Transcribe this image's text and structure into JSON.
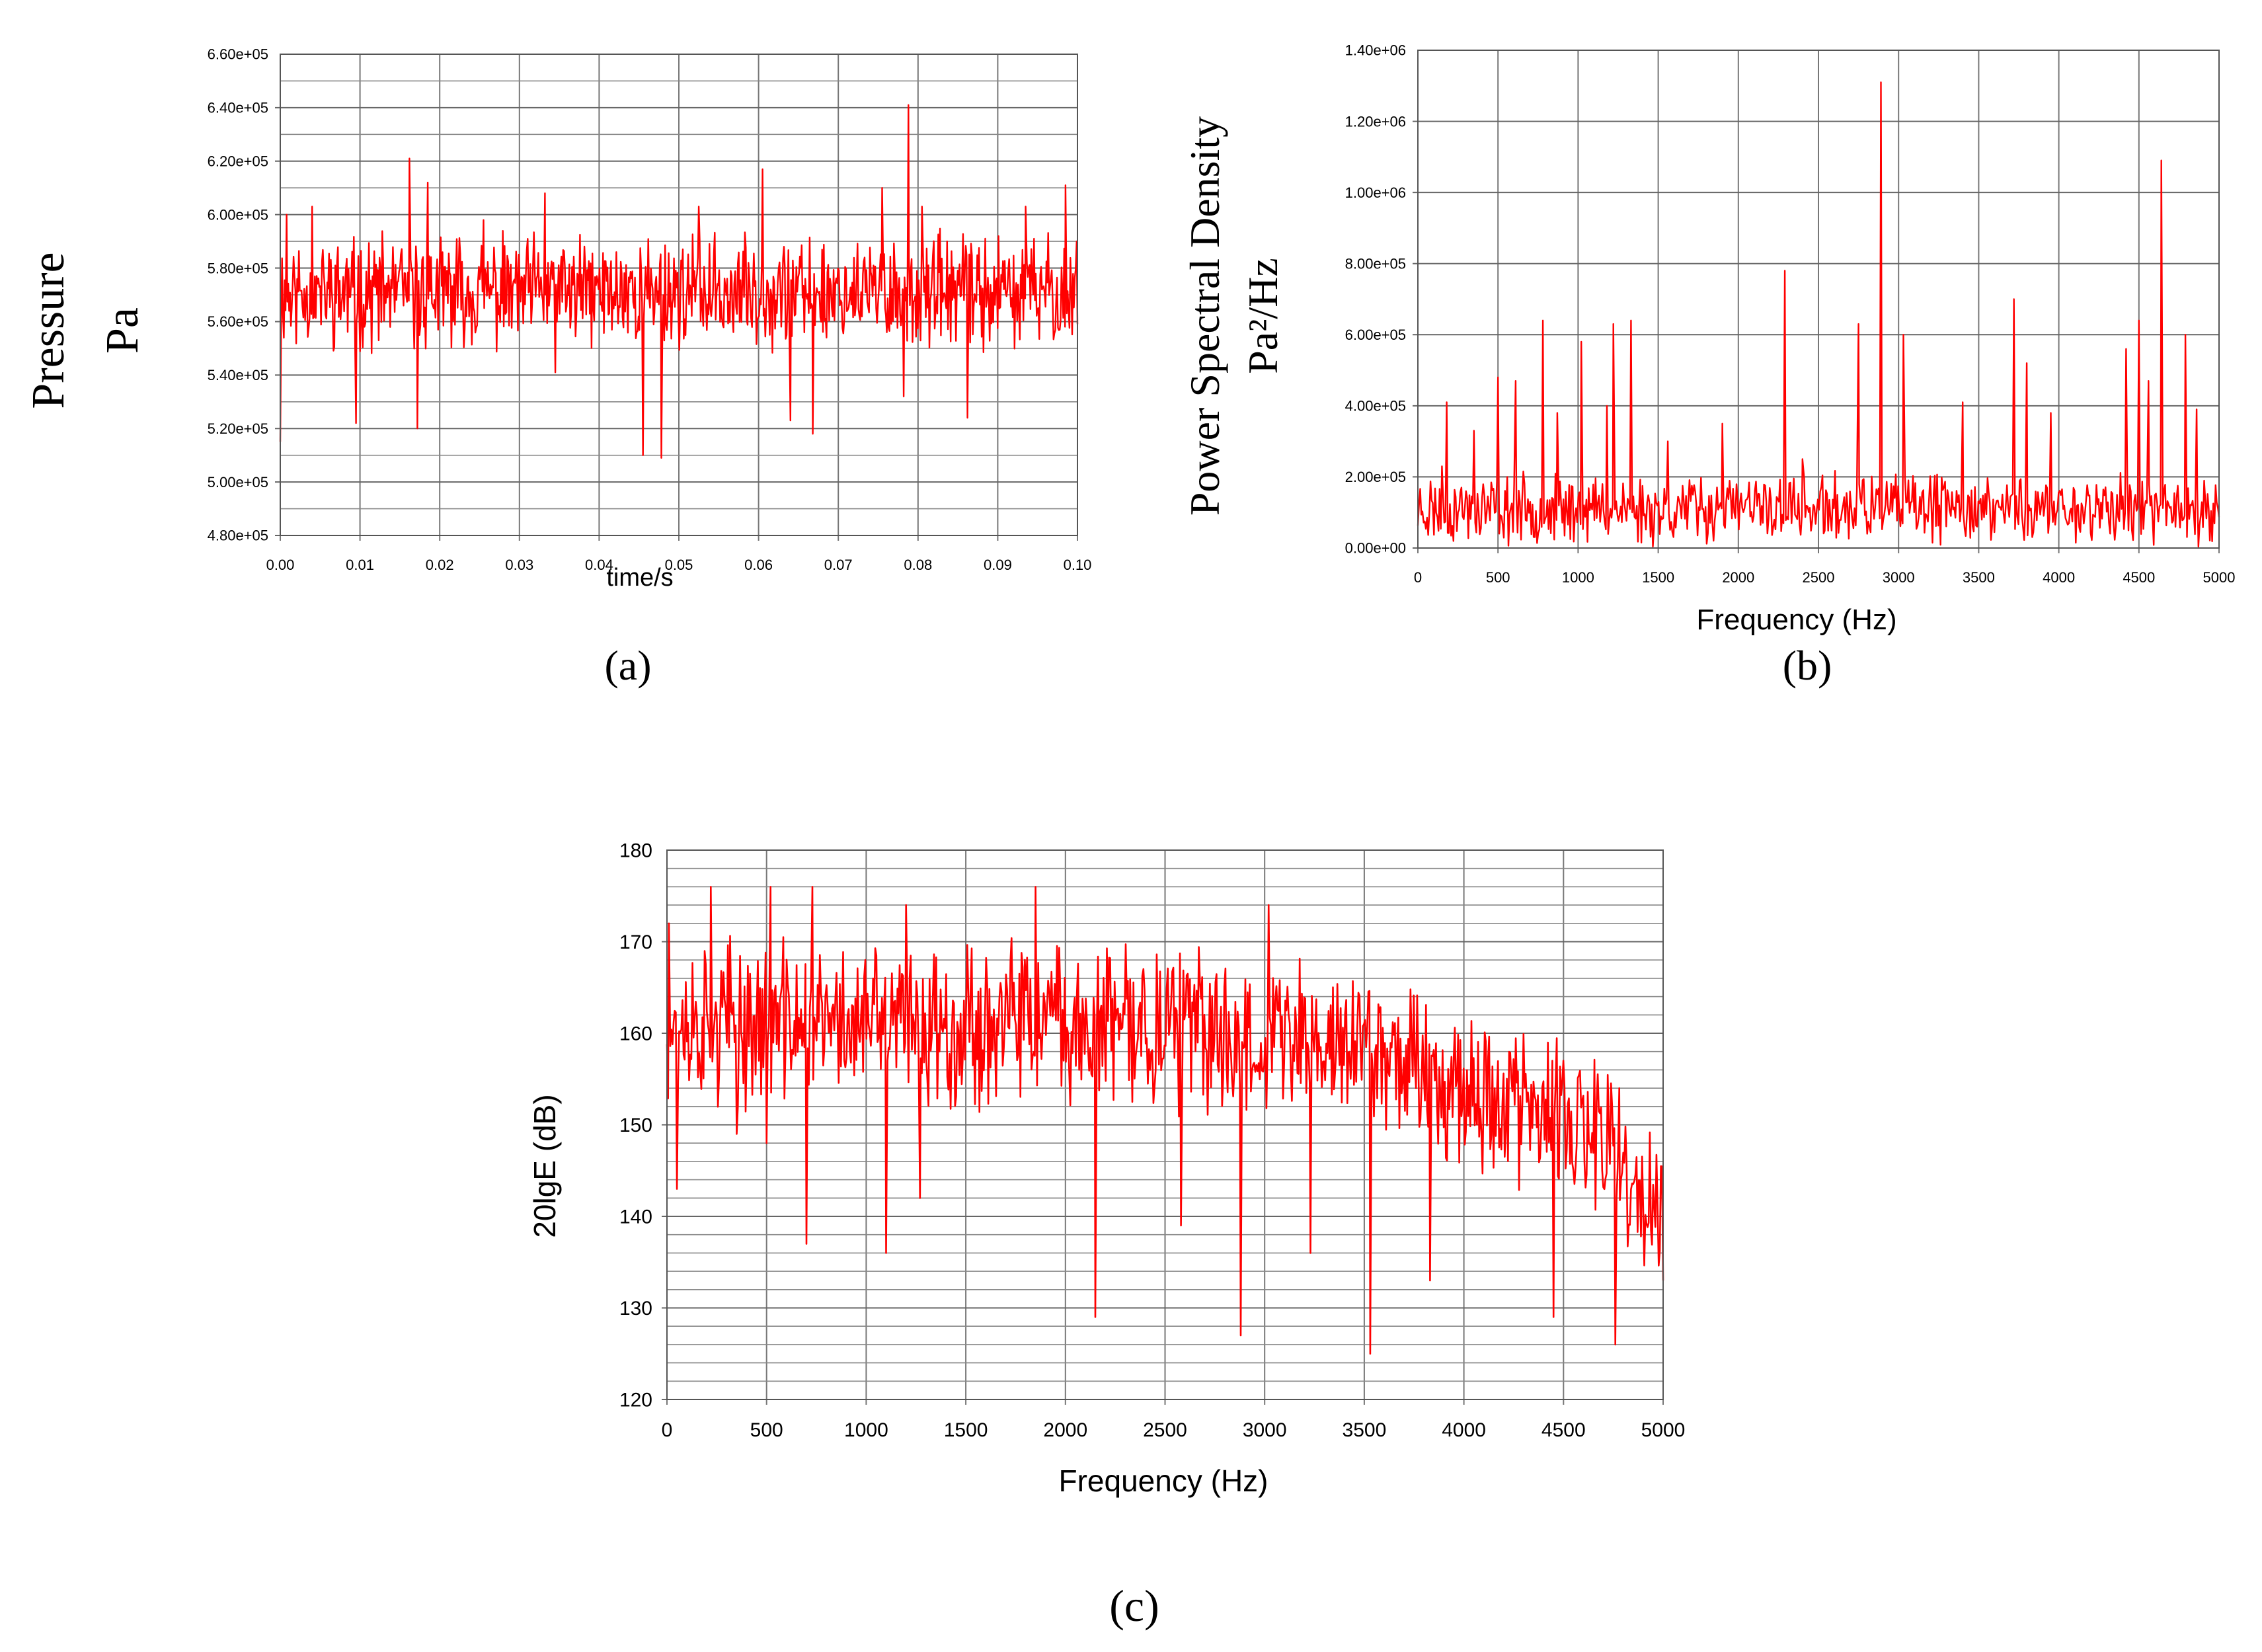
{
  "chart_data": [
    {
      "panel": "a",
      "type": "line",
      "caption": "(a)",
      "xlabel": "time/s",
      "ylabel_lines": [
        "Pressure",
        "Pa"
      ],
      "xlim": [
        0,
        0.1
      ],
      "ylim": [
        480000,
        660000
      ],
      "x_ticks": [
        0,
        0.01,
        0.02,
        0.03,
        0.04,
        0.05,
        0.06,
        0.07,
        0.08,
        0.09,
        0.1
      ],
      "x_tick_labels": [
        "0.00",
        "0.01",
        "0.02",
        "0.03",
        "0.04",
        "0.05",
        "0.06",
        "0.07",
        "0.08",
        "0.09",
        "0.10"
      ],
      "y_ticks": [
        480000,
        500000,
        520000,
        540000,
        560000,
        580000,
        600000,
        620000,
        640000,
        660000
      ],
      "y_tick_labels": [
        "4.80e+05",
        "5.00e+05",
        "5.20e+05",
        "5.40e+05",
        "5.60e+05",
        "5.80e+05",
        "6.00e+05",
        "6.20e+05",
        "6.40e+05",
        "6.60e+05"
      ],
      "grid": true,
      "line_color": "#ff0000",
      "series": [
        {
          "name": "pressure",
          "generated": true,
          "n_points": 900,
          "baseline": 571000,
          "noise": 15000,
          "floor": 505000,
          "ceiling": 645000,
          "seed": 11,
          "peaks": [
            [
              0.0,
              515000
            ],
            [
              0.0008,
              600000
            ],
            [
              0.004,
              603000
            ],
            [
              0.0095,
              522000
            ],
            [
              0.0162,
              621000
            ],
            [
              0.0172,
              520000
            ],
            [
              0.0185,
              612000
            ],
            [
              0.0255,
              598000
            ],
            [
              0.0332,
              608000
            ],
            [
              0.0345,
              541000
            ],
            [
              0.0455,
              510000
            ],
            [
              0.0478,
              509000
            ],
            [
              0.0525,
              603000
            ],
            [
              0.0605,
              617000
            ],
            [
              0.064,
              523000
            ],
            [
              0.0668,
              518000
            ],
            [
              0.0755,
              610000
            ],
            [
              0.0782,
              532000
            ],
            [
              0.0788,
              641000
            ],
            [
              0.0805,
              603000
            ],
            [
              0.0862,
              524000
            ],
            [
              0.0935,
              603000
            ],
            [
              0.0985,
              611000
            ],
            [
              0.0999,
              590000
            ]
          ]
        }
      ]
    },
    {
      "panel": "b",
      "type": "line",
      "caption": "(b)",
      "xlabel": "Frequency (Hz)",
      "ylabel_lines": [
        "Power Spectral Density",
        "Pa²/Hz"
      ],
      "xlim": [
        0,
        5000
      ],
      "ylim": [
        0,
        1400000
      ],
      "x_ticks": [
        0,
        500,
        1000,
        1500,
        2000,
        2500,
        3000,
        3500,
        4000,
        4500,
        5000
      ],
      "x_tick_labels": [
        "0",
        "500",
        "1000",
        "1500",
        "2000",
        "2500",
        "3000",
        "3500",
        "4000",
        "4500",
        "5000"
      ],
      "y_ticks": [
        0,
        200000,
        400000,
        600000,
        800000,
        1000000,
        1200000,
        1400000
      ],
      "y_tick_labels": [
        "0.00e+00",
        "2.00e+05",
        "4.00e+05",
        "6.00e+05",
        "8.00e+05",
        "1.00e+06",
        "1.20e+06",
        "1.40e+06"
      ],
      "grid": true,
      "line_color": "#ff0000",
      "series": [
        {
          "name": "psd",
          "generated": true,
          "n_points": 700,
          "baseline": 110000,
          "noise": 70000,
          "floor": 0,
          "ceiling": 1400000,
          "seed": 23,
          "peaks": [
            [
              150,
              230000
            ],
            [
              180,
              410000
            ],
            [
              350,
              330000
            ],
            [
              500,
              480000
            ],
            [
              610,
              470000
            ],
            [
              780,
              640000
            ],
            [
              870,
              380000
            ],
            [
              1020,
              580000
            ],
            [
              1180,
              400000
            ],
            [
              1220,
              630000
            ],
            [
              1330,
              640000
            ],
            [
              1560,
              300000
            ],
            [
              1900,
              350000
            ],
            [
              2290,
              780000
            ],
            [
              2400,
              250000
            ],
            [
              2750,
              630000
            ],
            [
              2890,
              1310000
            ],
            [
              3030,
              600000
            ],
            [
              3400,
              410000
            ],
            [
              3720,
              700000
            ],
            [
              3800,
              520000
            ],
            [
              3950,
              380000
            ],
            [
              4420,
              560000
            ],
            [
              4500,
              640000
            ],
            [
              4560,
              470000
            ],
            [
              4640,
              1090000
            ],
            [
              4790,
              600000
            ],
            [
              4860,
              390000
            ]
          ]
        }
      ]
    },
    {
      "panel": "c",
      "type": "line",
      "caption": "(c)",
      "xlabel": "Frequency (Hz)",
      "ylabel": "20lgE (dB)",
      "xlim": [
        0,
        5000
      ],
      "ylim": [
        120,
        180
      ],
      "x_ticks": [
        0,
        500,
        1000,
        1500,
        2000,
        2500,
        3000,
        3500,
        4000,
        4500,
        5000
      ],
      "x_tick_labels": [
        "0",
        "500",
        "1000",
        "1500",
        "2000",
        "2500",
        "3000",
        "3500",
        "4000",
        "4500",
        "5000"
      ],
      "y_ticks": [
        120,
        130,
        140,
        150,
        160,
        170,
        180
      ],
      "y_tick_labels": [
        "120",
        "130",
        "140",
        "150",
        "160",
        "170",
        "180"
      ],
      "grid": true,
      "line_color": "#ff0000",
      "series": [
        {
          "name": "20lgE",
          "generated": true,
          "n_points": 900,
          "noise": 6.5,
          "floor": 125,
          "ceiling": 177,
          "seed": 37,
          "trend": [
            [
              0,
              161
            ],
            [
              2000,
              161
            ],
            [
              3500,
              159
            ],
            [
              4200,
              153
            ],
            [
              4700,
              148
            ],
            [
              5000,
              138
            ]
          ],
          "peaks": [
            [
              10,
              172
            ],
            [
              50,
              143
            ],
            [
              220,
              176
            ],
            [
              350,
              149
            ],
            [
              500,
              148
            ],
            [
              520,
              176
            ],
            [
              700,
              137
            ],
            [
              730,
              176
            ],
            [
              1100,
              136
            ],
            [
              1200,
              174
            ],
            [
              1270,
              142
            ],
            [
              1850,
              176
            ],
            [
              2150,
              129
            ],
            [
              2580,
              139
            ],
            [
              2880,
              127
            ],
            [
              3020,
              174
            ],
            [
              3230,
              136
            ],
            [
              3530,
              125
            ],
            [
              3830,
              133
            ],
            [
              4450,
              129
            ],
            [
              4760,
              126
            ],
            [
              4780,
              154
            ],
            [
              5000,
              133
            ]
          ]
        }
      ]
    }
  ]
}
